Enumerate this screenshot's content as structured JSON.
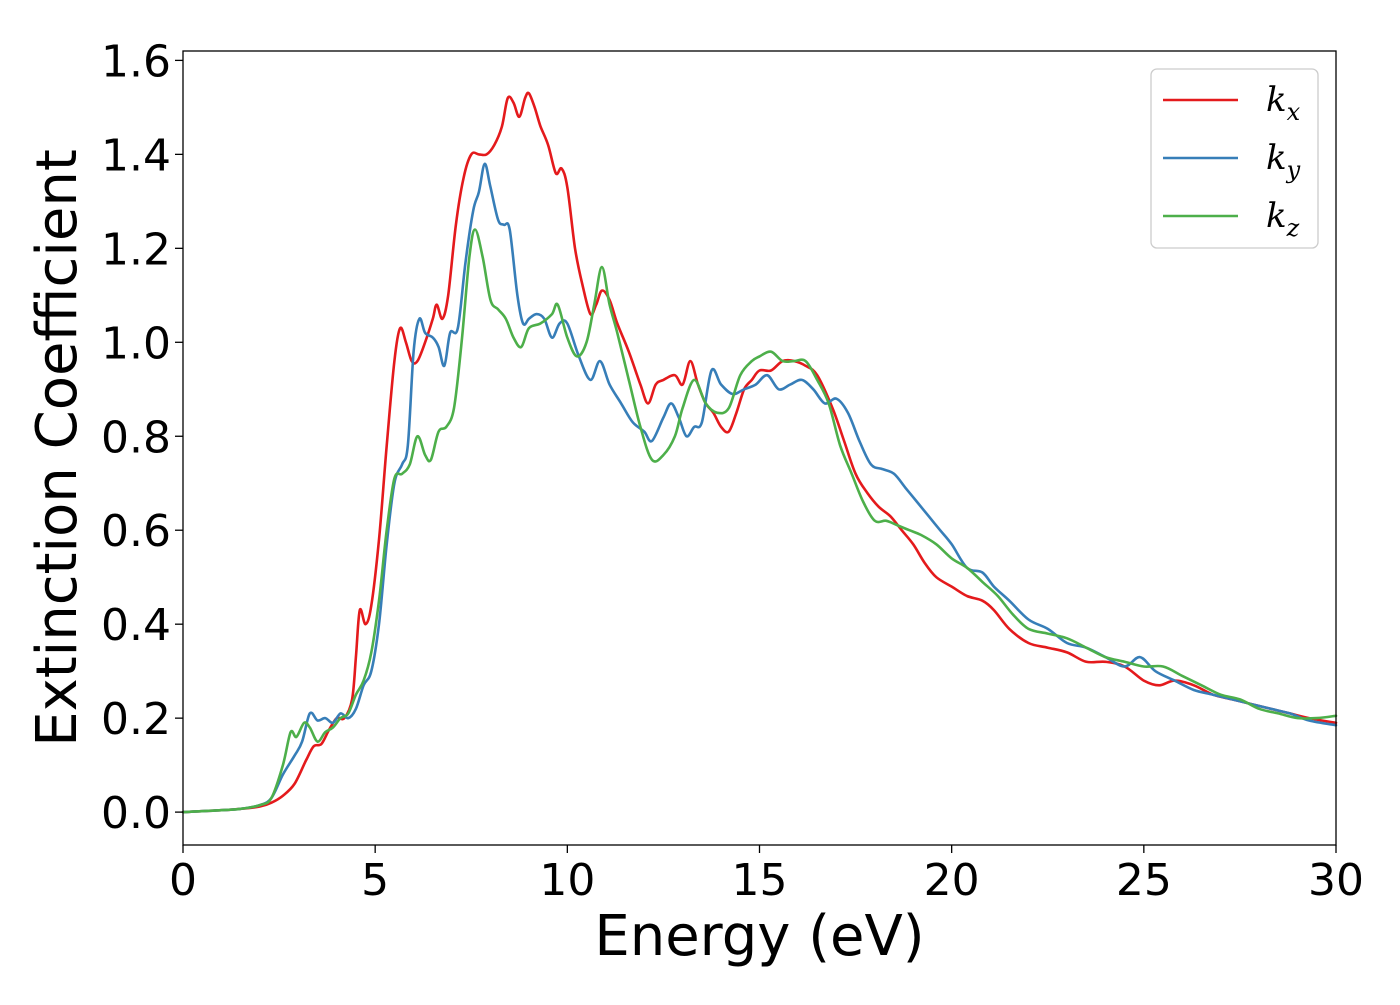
{
  "chart_data": {
    "type": "line",
    "xlabel": "Energy (eV)",
    "ylabel": "Extinction Coefficient",
    "xlim": [
      0,
      30
    ],
    "ylim": [
      -0.07,
      1.62
    ],
    "xticks": [
      0,
      5,
      10,
      15,
      20,
      25,
      30
    ],
    "xtick_labels": [
      "0",
      "5",
      "10",
      "15",
      "20",
      "25",
      "30"
    ],
    "yticks": [
      0.0,
      0.2,
      0.4,
      0.6,
      0.8,
      1.0,
      1.2,
      1.4,
      1.6
    ],
    "ytick_labels": [
      "0.0",
      "0.2",
      "0.4",
      "0.6",
      "0.8",
      "1.0",
      "1.2",
      "1.4",
      "1.6"
    ],
    "grid": false,
    "legend_position": "top-right",
    "series": [
      {
        "name": "k",
        "subscript": "x",
        "color": "#e41a1c",
        "points": [
          [
            0,
            0
          ],
          [
            1,
            0.004
          ],
          [
            1.5,
            0.007
          ],
          [
            2,
            0.012
          ],
          [
            2.3,
            0.02
          ],
          [
            2.6,
            0.035
          ],
          [
            2.9,
            0.06
          ],
          [
            3.2,
            0.11
          ],
          [
            3.4,
            0.14
          ],
          [
            3.6,
            0.145
          ],
          [
            3.8,
            0.175
          ],
          [
            4,
            0.2
          ],
          [
            4.2,
            0.2
          ],
          [
            4.4,
            0.24
          ],
          [
            4.5,
            0.33
          ],
          [
            4.6,
            0.43
          ],
          [
            4.75,
            0.4
          ],
          [
            4.9,
            0.44
          ],
          [
            5.1,
            0.58
          ],
          [
            5.3,
            0.78
          ],
          [
            5.5,
            0.96
          ],
          [
            5.65,
            1.03
          ],
          [
            5.8,
            1.0
          ],
          [
            5.95,
            0.96
          ],
          [
            6.1,
            0.96
          ],
          [
            6.3,
            1.0
          ],
          [
            6.5,
            1.05
          ],
          [
            6.6,
            1.08
          ],
          [
            6.75,
            1.05
          ],
          [
            6.9,
            1.1
          ],
          [
            7.1,
            1.25
          ],
          [
            7.3,
            1.35
          ],
          [
            7.5,
            1.4
          ],
          [
            7.7,
            1.4
          ],
          [
            7.9,
            1.4
          ],
          [
            8.1,
            1.42
          ],
          [
            8.3,
            1.46
          ],
          [
            8.45,
            1.52
          ],
          [
            8.6,
            1.51
          ],
          [
            8.75,
            1.48
          ],
          [
            8.9,
            1.52
          ],
          [
            9.0,
            1.53
          ],
          [
            9.15,
            1.5
          ],
          [
            9.3,
            1.46
          ],
          [
            9.5,
            1.42
          ],
          [
            9.7,
            1.36
          ],
          [
            9.85,
            1.37
          ],
          [
            10.0,
            1.33
          ],
          [
            10.2,
            1.2
          ],
          [
            10.4,
            1.12
          ],
          [
            10.6,
            1.06
          ],
          [
            10.75,
            1.08
          ],
          [
            10.9,
            1.11
          ],
          [
            11.1,
            1.09
          ],
          [
            11.3,
            1.04
          ],
          [
            11.6,
            0.98
          ],
          [
            11.9,
            0.91
          ],
          [
            12.1,
            0.87
          ],
          [
            12.3,
            0.91
          ],
          [
            12.5,
            0.92
          ],
          [
            12.8,
            0.93
          ],
          [
            13.0,
            0.91
          ],
          [
            13.2,
            0.96
          ],
          [
            13.4,
            0.91
          ],
          [
            13.6,
            0.87
          ],
          [
            13.8,
            0.85
          ],
          [
            14.0,
            0.82
          ],
          [
            14.2,
            0.81
          ],
          [
            14.4,
            0.85
          ],
          [
            14.6,
            0.9
          ],
          [
            14.8,
            0.92
          ],
          [
            15.0,
            0.94
          ],
          [
            15.3,
            0.94
          ],
          [
            15.6,
            0.96
          ],
          [
            15.9,
            0.96
          ],
          [
            16.2,
            0.95
          ],
          [
            16.5,
            0.93
          ],
          [
            16.9,
            0.86
          ],
          [
            17.2,
            0.79
          ],
          [
            17.5,
            0.72
          ],
          [
            17.8,
            0.68
          ],
          [
            18.1,
            0.65
          ],
          [
            18.4,
            0.63
          ],
          [
            18.7,
            0.6
          ],
          [
            19.0,
            0.57
          ],
          [
            19.3,
            0.53
          ],
          [
            19.6,
            0.5
          ],
          [
            20.0,
            0.48
          ],
          [
            20.4,
            0.46
          ],
          [
            20.8,
            0.45
          ],
          [
            21.1,
            0.43
          ],
          [
            21.5,
            0.39
          ],
          [
            22.0,
            0.36
          ],
          [
            22.5,
            0.35
          ],
          [
            23.0,
            0.34
          ],
          [
            23.5,
            0.32
          ],
          [
            24.0,
            0.32
          ],
          [
            24.5,
            0.31
          ],
          [
            25.0,
            0.28
          ],
          [
            25.4,
            0.27
          ],
          [
            25.8,
            0.28
          ],
          [
            26.3,
            0.27
          ],
          [
            26.8,
            0.25
          ],
          [
            27.3,
            0.24
          ],
          [
            27.8,
            0.23
          ],
          [
            28.3,
            0.22
          ],
          [
            28.8,
            0.21
          ],
          [
            29.3,
            0.2
          ],
          [
            30,
            0.19
          ]
        ]
      },
      {
        "name": "k",
        "subscript": "y",
        "color": "#377eb8",
        "points": [
          [
            0,
            0
          ],
          [
            1,
            0.004
          ],
          [
            1.5,
            0.007
          ],
          [
            2,
            0.015
          ],
          [
            2.3,
            0.03
          ],
          [
            2.6,
            0.08
          ],
          [
            2.9,
            0.12
          ],
          [
            3.1,
            0.15
          ],
          [
            3.3,
            0.21
          ],
          [
            3.5,
            0.195
          ],
          [
            3.7,
            0.2
          ],
          [
            3.9,
            0.19
          ],
          [
            4.1,
            0.21
          ],
          [
            4.3,
            0.2
          ],
          [
            4.5,
            0.22
          ],
          [
            4.7,
            0.27
          ],
          [
            4.9,
            0.3
          ],
          [
            5.1,
            0.4
          ],
          [
            5.3,
            0.57
          ],
          [
            5.5,
            0.7
          ],
          [
            5.7,
            0.74
          ],
          [
            5.85,
            0.78
          ],
          [
            6.0,
            0.98
          ],
          [
            6.15,
            1.05
          ],
          [
            6.3,
            1.02
          ],
          [
            6.5,
            1.01
          ],
          [
            6.65,
            0.99
          ],
          [
            6.8,
            0.95
          ],
          [
            6.95,
            1.02
          ],
          [
            7.15,
            1.03
          ],
          [
            7.35,
            1.17
          ],
          [
            7.55,
            1.28
          ],
          [
            7.7,
            1.32
          ],
          [
            7.85,
            1.38
          ],
          [
            8.0,
            1.33
          ],
          [
            8.2,
            1.26
          ],
          [
            8.35,
            1.25
          ],
          [
            8.5,
            1.24
          ],
          [
            8.7,
            1.1
          ],
          [
            8.85,
            1.04
          ],
          [
            9.0,
            1.05
          ],
          [
            9.2,
            1.06
          ],
          [
            9.4,
            1.05
          ],
          [
            9.6,
            1.01
          ],
          [
            9.8,
            1.04
          ],
          [
            10.0,
            1.04
          ],
          [
            10.3,
            0.97
          ],
          [
            10.6,
            0.92
          ],
          [
            10.85,
            0.96
          ],
          [
            11.1,
            0.91
          ],
          [
            11.4,
            0.87
          ],
          [
            11.7,
            0.83
          ],
          [
            12.0,
            0.81
          ],
          [
            12.2,
            0.79
          ],
          [
            12.5,
            0.84
          ],
          [
            12.7,
            0.87
          ],
          [
            12.9,
            0.84
          ],
          [
            13.1,
            0.8
          ],
          [
            13.3,
            0.82
          ],
          [
            13.5,
            0.83
          ],
          [
            13.75,
            0.94
          ],
          [
            14.0,
            0.91
          ],
          [
            14.3,
            0.89
          ],
          [
            14.6,
            0.9
          ],
          [
            14.9,
            0.91
          ],
          [
            15.2,
            0.93
          ],
          [
            15.5,
            0.9
          ],
          [
            15.8,
            0.91
          ],
          [
            16.1,
            0.92
          ],
          [
            16.4,
            0.9
          ],
          [
            16.7,
            0.87
          ],
          [
            17.0,
            0.88
          ],
          [
            17.3,
            0.85
          ],
          [
            17.6,
            0.79
          ],
          [
            17.9,
            0.74
          ],
          [
            18.2,
            0.73
          ],
          [
            18.5,
            0.72
          ],
          [
            18.8,
            0.69
          ],
          [
            19.1,
            0.66
          ],
          [
            19.4,
            0.63
          ],
          [
            19.7,
            0.6
          ],
          [
            20.0,
            0.57
          ],
          [
            20.4,
            0.52
          ],
          [
            20.8,
            0.51
          ],
          [
            21.1,
            0.48
          ],
          [
            21.5,
            0.45
          ],
          [
            22.0,
            0.41
          ],
          [
            22.5,
            0.39
          ],
          [
            23.0,
            0.36
          ],
          [
            23.5,
            0.35
          ],
          [
            24.0,
            0.33
          ],
          [
            24.5,
            0.31
          ],
          [
            24.9,
            0.33
          ],
          [
            25.3,
            0.3
          ],
          [
            25.8,
            0.28
          ],
          [
            26.3,
            0.26
          ],
          [
            26.8,
            0.25
          ],
          [
            27.3,
            0.24
          ],
          [
            27.8,
            0.23
          ],
          [
            28.3,
            0.22
          ],
          [
            28.8,
            0.21
          ],
          [
            29.3,
            0.195
          ],
          [
            30,
            0.185
          ]
        ]
      },
      {
        "name": "k",
        "subscript": "z",
        "color": "#4daf4a",
        "points": [
          [
            0,
            0
          ],
          [
            1,
            0.004
          ],
          [
            1.5,
            0.007
          ],
          [
            2,
            0.015
          ],
          [
            2.3,
            0.03
          ],
          [
            2.6,
            0.1
          ],
          [
            2.8,
            0.17
          ],
          [
            2.95,
            0.16
          ],
          [
            3.15,
            0.19
          ],
          [
            3.3,
            0.18
          ],
          [
            3.5,
            0.15
          ],
          [
            3.7,
            0.17
          ],
          [
            3.9,
            0.18
          ],
          [
            4.1,
            0.2
          ],
          [
            4.3,
            0.21
          ],
          [
            4.5,
            0.25
          ],
          [
            4.7,
            0.28
          ],
          [
            4.9,
            0.34
          ],
          [
            5.1,
            0.45
          ],
          [
            5.3,
            0.6
          ],
          [
            5.5,
            0.71
          ],
          [
            5.7,
            0.72
          ],
          [
            5.9,
            0.74
          ],
          [
            6.1,
            0.8
          ],
          [
            6.3,
            0.76
          ],
          [
            6.45,
            0.75
          ],
          [
            6.65,
            0.81
          ],
          [
            6.85,
            0.82
          ],
          [
            7.05,
            0.86
          ],
          [
            7.25,
            1.0
          ],
          [
            7.45,
            1.18
          ],
          [
            7.6,
            1.24
          ],
          [
            7.8,
            1.18
          ],
          [
            8.0,
            1.09
          ],
          [
            8.2,
            1.07
          ],
          [
            8.4,
            1.05
          ],
          [
            8.6,
            1.01
          ],
          [
            8.8,
            0.99
          ],
          [
            9.0,
            1.03
          ],
          [
            9.3,
            1.04
          ],
          [
            9.6,
            1.06
          ],
          [
            9.75,
            1.08
          ],
          [
            10.0,
            1.01
          ],
          [
            10.25,
            0.97
          ],
          [
            10.5,
            1.0
          ],
          [
            10.7,
            1.08
          ],
          [
            10.9,
            1.16
          ],
          [
            11.1,
            1.08
          ],
          [
            11.3,
            1.02
          ],
          [
            11.6,
            0.92
          ],
          [
            11.9,
            0.82
          ],
          [
            12.2,
            0.75
          ],
          [
            12.5,
            0.76
          ],
          [
            12.8,
            0.8
          ],
          [
            13.0,
            0.86
          ],
          [
            13.3,
            0.92
          ],
          [
            13.6,
            0.87
          ],
          [
            13.9,
            0.85
          ],
          [
            14.2,
            0.86
          ],
          [
            14.5,
            0.93
          ],
          [
            14.8,
            0.96
          ],
          [
            15.0,
            0.97
          ],
          [
            15.3,
            0.98
          ],
          [
            15.6,
            0.96
          ],
          [
            15.9,
            0.96
          ],
          [
            16.2,
            0.96
          ],
          [
            16.5,
            0.92
          ],
          [
            16.8,
            0.87
          ],
          [
            17.1,
            0.78
          ],
          [
            17.4,
            0.72
          ],
          [
            17.7,
            0.66
          ],
          [
            18.0,
            0.62
          ],
          [
            18.3,
            0.62
          ],
          [
            18.6,
            0.61
          ],
          [
            18.9,
            0.6
          ],
          [
            19.2,
            0.59
          ],
          [
            19.6,
            0.57
          ],
          [
            20.0,
            0.54
          ],
          [
            20.4,
            0.52
          ],
          [
            20.8,
            0.49
          ],
          [
            21.2,
            0.46
          ],
          [
            21.6,
            0.42
          ],
          [
            22.0,
            0.39
          ],
          [
            22.5,
            0.38
          ],
          [
            23.0,
            0.37
          ],
          [
            23.5,
            0.35
          ],
          [
            24.0,
            0.33
          ],
          [
            24.5,
            0.32
          ],
          [
            25.0,
            0.31
          ],
          [
            25.5,
            0.31
          ],
          [
            26.0,
            0.29
          ],
          [
            26.5,
            0.27
          ],
          [
            27.0,
            0.25
          ],
          [
            27.5,
            0.24
          ],
          [
            28.0,
            0.22
          ],
          [
            28.5,
            0.21
          ],
          [
            29.0,
            0.2
          ],
          [
            29.5,
            0.2
          ],
          [
            30,
            0.205
          ]
        ]
      }
    ]
  }
}
